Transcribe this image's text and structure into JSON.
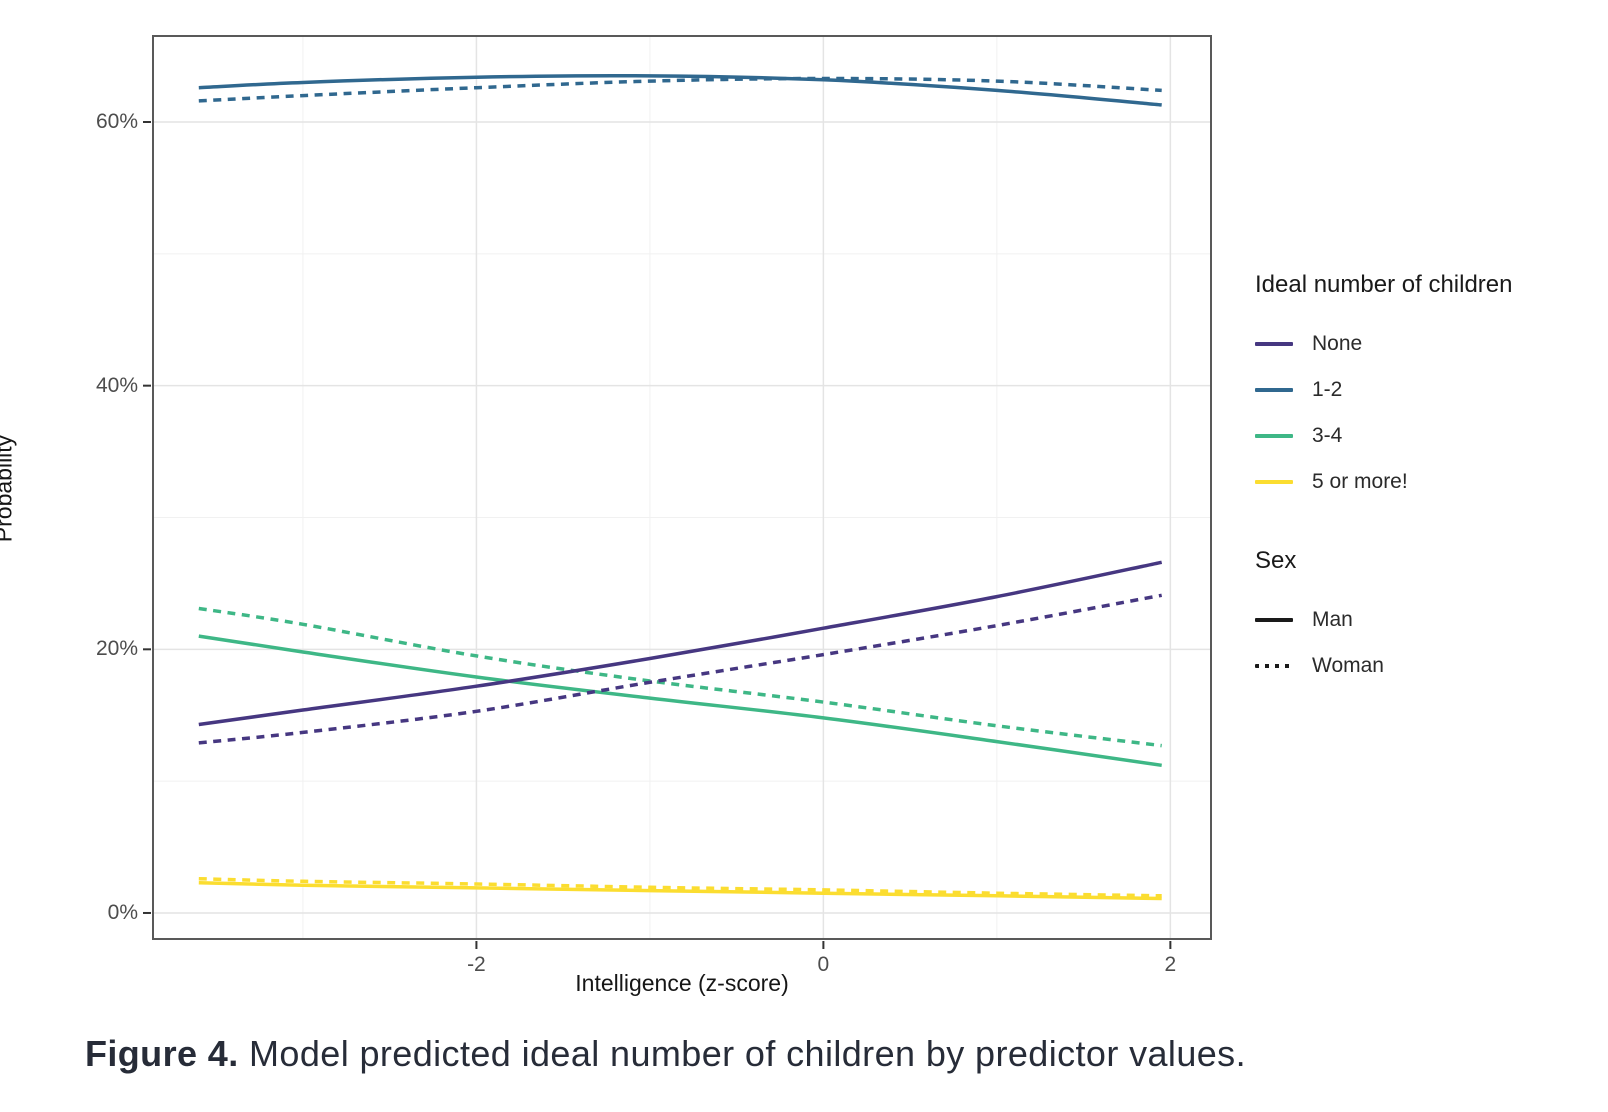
{
  "figure": {
    "caption_bold": "Figure 4.",
    "caption_text": " Model predicted ideal number of children by predictor values."
  },
  "chart_data": {
    "type": "line",
    "xlabel": "Intelligence (z-score)",
    "ylabel": "Probability",
    "xlim": [
      -3.87,
      2.24
    ],
    "ylim": [
      -2.05,
      66.6
    ],
    "x_major_ticks": [
      -2,
      0,
      2
    ],
    "x_tick_labels": [
      "-2",
      "0",
      "2"
    ],
    "x_minor_gridlines": [
      -3,
      -1,
      1
    ],
    "y_major_ticks": [
      0,
      20,
      40,
      60
    ],
    "y_tick_labels": [
      "0%",
      "20%",
      "40%",
      "60%"
    ],
    "y_minor_gridlines": [
      10,
      30,
      50
    ],
    "grid": "on",
    "legend_position": "right",
    "x": [
      -3.6,
      -3,
      -2,
      -1,
      0,
      1,
      1.95
    ],
    "series": [
      {
        "name": "5 or more!",
        "sex": "Man",
        "dash": false,
        "color": "#fbdd30",
        "values": [
          2.3,
          2.1,
          1.9,
          1.7,
          1.5,
          1.3,
          1.1
        ]
      },
      {
        "name": "5 or more!",
        "sex": "Woman",
        "dash": true,
        "color": "#fbdd30",
        "values": [
          2.6,
          2.4,
          2.2,
          1.95,
          1.75,
          1.5,
          1.3
        ]
      },
      {
        "name": "3-4",
        "sex": "Man",
        "dash": false,
        "color": "#3eb786",
        "values": [
          21.0,
          19.8,
          17.9,
          16.3,
          14.8,
          13.0,
          11.2
        ]
      },
      {
        "name": "3-4",
        "sex": "Woman",
        "dash": true,
        "color": "#3eb786",
        "values": [
          23.1,
          21.9,
          19.5,
          17.6,
          16.0,
          14.2,
          12.7
        ]
      },
      {
        "name": "None",
        "sex": "Man",
        "dash": false,
        "color": "#463781",
        "values": [
          14.3,
          15.4,
          17.2,
          19.3,
          21.6,
          24.0,
          26.6
        ]
      },
      {
        "name": "None",
        "sex": "Woman",
        "dash": true,
        "color": "#463781",
        "values": [
          12.9,
          13.7,
          15.3,
          17.5,
          19.6,
          21.8,
          24.1
        ]
      },
      {
        "name": "1-2",
        "sex": "Man",
        "dash": false,
        "color": "#30688f",
        "values": [
          62.6,
          63.0,
          63.4,
          63.5,
          63.2,
          62.4,
          61.3
        ]
      },
      {
        "name": "1-2",
        "sex": "Woman",
        "dash": true,
        "color": "#30688f",
        "values": [
          61.6,
          62.0,
          62.6,
          63.1,
          63.3,
          63.1,
          62.4
        ]
      }
    ]
  },
  "legend": {
    "children_title": "Ideal number of children",
    "children_items": [
      {
        "label": "None",
        "color": "#463781"
      },
      {
        "label": "1-2",
        "color": "#30688f"
      },
      {
        "label": "3-4",
        "color": "#3eb786"
      },
      {
        "label": "5 or more!",
        "color": "#fbdd30"
      }
    ],
    "sex_title": "Sex",
    "sex_items": [
      {
        "label": "Man",
        "dash": false
      },
      {
        "label": "Woman",
        "dash": true
      }
    ],
    "line_color": "#1a1a1a"
  },
  "style": {
    "panel_border": "#595959",
    "grid_major": "#e4e4e4",
    "grid_minor": "#f1f1f1",
    "tick_mark": "#333333"
  }
}
